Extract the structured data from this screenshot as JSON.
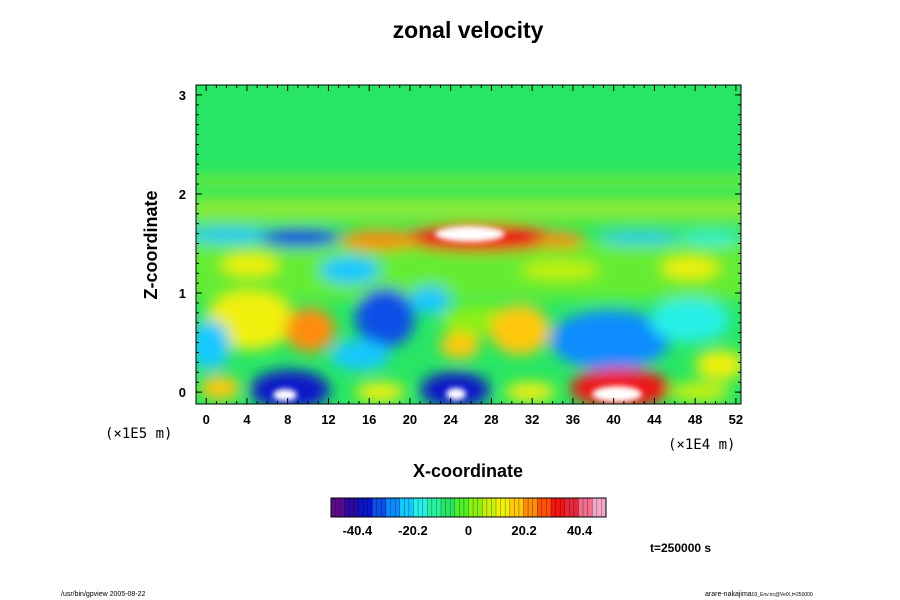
{
  "chart_data": {
    "type": "heatmap",
    "title": "zonal velocity",
    "xlabel": "X-coordinate",
    "ylabel": "Z-coordinate",
    "x_ticks": [
      "0",
      "4",
      "8",
      "12",
      "16",
      "20",
      "24",
      "28",
      "32",
      "36",
      "40",
      "44",
      "48",
      "52"
    ],
    "y_ticks": [
      "0",
      "1",
      "2",
      "3"
    ],
    "xlim": [
      -1,
      52.5
    ],
    "ylim": [
      -0.12,
      3.1
    ],
    "x_scale_label": "(×1E4 m)",
    "y_scale_label": "(×1E5 m)",
    "colorbar": {
      "ticks": [
        "-40.4",
        "-20.2",
        "0",
        "20.2",
        "40.4"
      ],
      "range": [
        -50,
        50
      ],
      "colors": [
        "#5a0a8c",
        "#2a0aa0",
        "#0a14c8",
        "#0a50e6",
        "#0a8cff",
        "#14c8ff",
        "#28f0e6",
        "#2af0a0",
        "#28e664",
        "#50f028",
        "#8cf014",
        "#c8f00a",
        "#f0f00a",
        "#ffc80a",
        "#ff8c0a",
        "#ff500a",
        "#f01414",
        "#e6283c",
        "#f06e8c",
        "#f5a8c8"
      ]
    },
    "time_label": "t=250000 s",
    "features": [
      {
        "x": 24,
        "z": 1.58,
        "value": 45
      },
      {
        "x": 8,
        "z": 0.02,
        "value": -45
      },
      {
        "x": 24.5,
        "z": 0.02,
        "value": -45
      },
      {
        "x": 39.5,
        "z": 0.04,
        "value": 45
      },
      {
        "x": 42,
        "z": 0.55,
        "value": -15
      },
      {
        "x": 19,
        "z": 0.75,
        "value": -35
      },
      {
        "x": 3,
        "z": 1.58,
        "value": -25
      },
      {
        "x": 31,
        "z": 0.65,
        "value": 20
      }
    ]
  },
  "footer": {
    "left": "/usr/bin/gpview 2005-08-22",
    "right_main": "arare-nakajima",
    "right_sub": "03_Env.nc@VelX,t=250000"
  }
}
